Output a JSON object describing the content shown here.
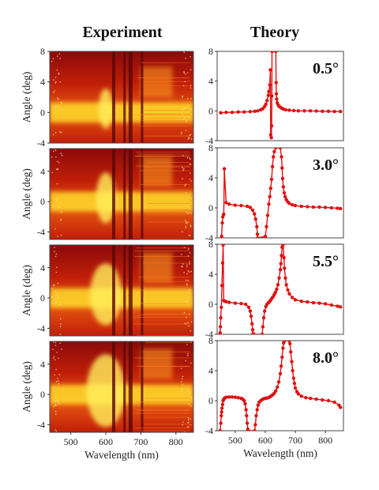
{
  "figure": {
    "experiment_title": "Experiment",
    "theory_title": "Theory"
  },
  "chart_data": [
    {
      "type": "heatmap",
      "panel": "experiment",
      "angle_label": "",
      "ylabel": "Angle (deg)",
      "xlabel": "",
      "xlim": [
        440,
        850
      ],
      "ylim": [
        -4,
        8
      ],
      "yticks": [
        -4,
        0,
        4,
        8
      ],
      "xticks": []
    },
    {
      "type": "line",
      "panel": "theory",
      "angle_label": "0.5°",
      "xlabel": "",
      "xlim": [
        440,
        860
      ],
      "ylim": [
        -4,
        8
      ],
      "yticks": [
        -4,
        0,
        4,
        8
      ],
      "xticks": [],
      "series": [
        {
          "color": "#e01010",
          "x": [
            452,
            470,
            490,
            510,
            530,
            550,
            565,
            575,
            585,
            592,
            598,
            602,
            606,
            610,
            612,
            615,
            617,
            618,
            620,
            621,
            622,
            622.5,
            635,
            636,
            637,
            638,
            640,
            643,
            646,
            650,
            655,
            660,
            668,
            680,
            695,
            710,
            730,
            750,
            770,
            790,
            810,
            830,
            850
          ],
          "y": [
            -0.25,
            -0.2,
            -0.2,
            -0.15,
            -0.15,
            -0.1,
            -0.05,
            0.0,
            0.15,
            0.3,
            0.6,
            0.9,
            1.4,
            2.1,
            2.6,
            3.5,
            5.5,
            -3.2,
            -3.6,
            -2.0,
            2.0,
            8.0,
            8.0,
            3.8,
            2.3,
            1.6,
            1.1,
            0.8,
            0.6,
            0.5,
            0.35,
            0.25,
            0.15,
            0.1,
            0.05,
            0.0,
            0.0,
            0.0,
            -0.02,
            -0.05,
            -0.05,
            -0.08,
            -0.08
          ]
        }
      ]
    },
    {
      "type": "heatmap",
      "panel": "experiment",
      "angle_label": "",
      "ylabel": "Angle (deg)",
      "xlabel": "",
      "xlim": [
        440,
        850
      ],
      "ylim": [
        -5,
        7
      ],
      "yticks": [
        -4,
        0,
        4
      ],
      "xticks": []
    },
    {
      "type": "line",
      "panel": "theory",
      "angle_label": "3.0°",
      "xlabel": "",
      "xlim": [
        440,
        860
      ],
      "ylim": [
        -4,
        8
      ],
      "yticks": [
        -4,
        0,
        4,
        8
      ],
      "xticks": [],
      "series": [
        {
          "color": "#e01010",
          "x": [
            455,
            457,
            459,
            461,
            462,
            464,
            470,
            480,
            500,
            520,
            540,
            550,
            558,
            564,
            568,
            572,
            574,
            575,
            600,
            604,
            608,
            612,
            615,
            618,
            621,
            624,
            627,
            630,
            635,
            650,
            654,
            656,
            658,
            660,
            663,
            666,
            670,
            675,
            680,
            690,
            700,
            720,
            740,
            760,
            780,
            800,
            820,
            840,
            850
          ],
          "y": [
            -3.8,
            -2.0,
            -1.2,
            -0.9,
            -0.85,
            5.2,
            0.7,
            0.5,
            0.35,
            0.3,
            0.2,
            0.05,
            -0.3,
            -0.8,
            -1.5,
            -2.5,
            -3.5,
            -4.0,
            -3.8,
            -2.5,
            -1.0,
            0.5,
            1.5,
            2.6,
            3.8,
            5.5,
            6.8,
            7.5,
            8.0,
            8.0,
            6.8,
            5.3,
            3.9,
            2.8,
            2.0,
            1.5,
            1.1,
            0.8,
            0.6,
            0.4,
            0.3,
            0.2,
            0.15,
            0.1,
            0.1,
            0.05,
            0.0,
            -0.05,
            -0.1
          ]
        }
      ]
    },
    {
      "type": "heatmap",
      "panel": "experiment",
      "angle_label": "",
      "ylabel": "Angle (deg)",
      "xlabel": "",
      "xlim": [
        440,
        850
      ],
      "ylim": [
        -5,
        7
      ],
      "yticks": [
        -4,
        0,
        4
      ],
      "xticks": []
    },
    {
      "type": "line",
      "panel": "theory",
      "angle_label": "5.5°",
      "xlabel": "",
      "xlim": [
        440,
        860
      ],
      "ylim": [
        -4,
        8
      ],
      "yticks": [
        -4,
        0,
        4,
        8
      ],
      "xticks": [],
      "series": [
        {
          "color": "#e01010",
          "x": [
            450,
            451,
            452,
            454,
            456,
            458,
            460,
            462,
            466,
            470,
            480,
            500,
            520,
            535,
            545,
            550,
            553,
            556,
            558,
            560,
            562,
            590,
            592,
            595,
            598,
            602,
            606,
            610,
            614,
            618,
            622,
            626,
            630,
            634,
            638,
            642,
            646,
            650,
            652,
            654,
            656,
            658,
            660,
            662,
            664,
            667,
            670,
            675,
            680,
            690,
            700,
            720,
            740,
            760,
            780,
            800,
            820,
            840,
            850
          ],
          "y": [
            -3.8,
            -3.0,
            -1.8,
            -0.4,
            2.5,
            5.5,
            7.9,
            0.5,
            0.4,
            0.35,
            0.25,
            0.15,
            0.1,
            0.0,
            -0.4,
            -0.9,
            -1.6,
            -2.6,
            -3.4,
            -3.9,
            -4.0,
            -4.0,
            -3.0,
            -1.8,
            -0.9,
            -0.3,
            0.0,
            0.2,
            0.35,
            0.55,
            0.8,
            1.0,
            1.3,
            1.6,
            2.0,
            2.6,
            3.5,
            4.6,
            5.4,
            6.5,
            7.6,
            8.0,
            8.0,
            6.2,
            4.8,
            3.5,
            2.6,
            1.9,
            1.4,
            0.9,
            0.6,
            0.4,
            0.3,
            0.2,
            0.15,
            0.05,
            -0.1,
            -0.25,
            -0.35
          ]
        }
      ]
    },
    {
      "type": "heatmap",
      "panel": "experiment",
      "angle_label": "",
      "ylabel": "Angle (deg)",
      "xlabel": "Wavelength (nm)",
      "xlim": [
        440,
        850
      ],
      "ylim": [
        -5,
        7
      ],
      "yticks": [
        -4,
        0,
        4
      ],
      "xticks": [
        500,
        600,
        700,
        800
      ]
    },
    {
      "type": "line",
      "panel": "theory",
      "angle_label": "8.0°",
      "xlabel": "Wavelength (nm)",
      "xlim": [
        440,
        860
      ],
      "ylim": [
        -4,
        8
      ],
      "yticks": [
        -4,
        0,
        4,
        8
      ],
      "xticks": [
        500,
        600,
        700,
        800
      ],
      "series": [
        {
          "color": "#e01010",
          "x": [
            450,
            452,
            454,
            455,
            456,
            458,
            460,
            462,
            465,
            470,
            480,
            490,
            500,
            510,
            520,
            525,
            530,
            533,
            536,
            538,
            540,
            542,
            543,
            565,
            567,
            570,
            573,
            576,
            580,
            585,
            590,
            595,
            600,
            605,
            610,
            615,
            620,
            625,
            630,
            635,
            640,
            645,
            650,
            653,
            656,
            659,
            661,
            663,
            665,
            680,
            682,
            685,
            688,
            691,
            694,
            697,
            700,
            705,
            710,
            720,
            735,
            750,
            770,
            790,
            810,
            830,
            845,
            850
          ],
          "y": [
            -4.0,
            -3.0,
            -2.0,
            -1.5,
            -1.0,
            -0.5,
            0.0,
            0.2,
            0.35,
            0.45,
            0.5,
            0.5,
            0.45,
            0.4,
            0.3,
            0.2,
            0.0,
            -0.4,
            -1.2,
            -2.0,
            -3.0,
            -3.8,
            -4.0,
            -4.0,
            -3.2,
            -2.0,
            -1.2,
            -0.6,
            -0.2,
            0.0,
            0.15,
            0.25,
            0.3,
            0.35,
            0.4,
            0.5,
            0.65,
            0.8,
            1.0,
            1.3,
            1.8,
            2.5,
            3.6,
            4.6,
            5.8,
            7.0,
            7.7,
            8.0,
            8.0,
            8.0,
            7.6,
            6.5,
            5.2,
            4.0,
            3.0,
            2.3,
            1.7,
            1.2,
            0.9,
            0.6,
            0.4,
            0.3,
            0.2,
            0.1,
            0.0,
            -0.2,
            -0.6,
            -0.9
          ]
        }
      ]
    }
  ]
}
